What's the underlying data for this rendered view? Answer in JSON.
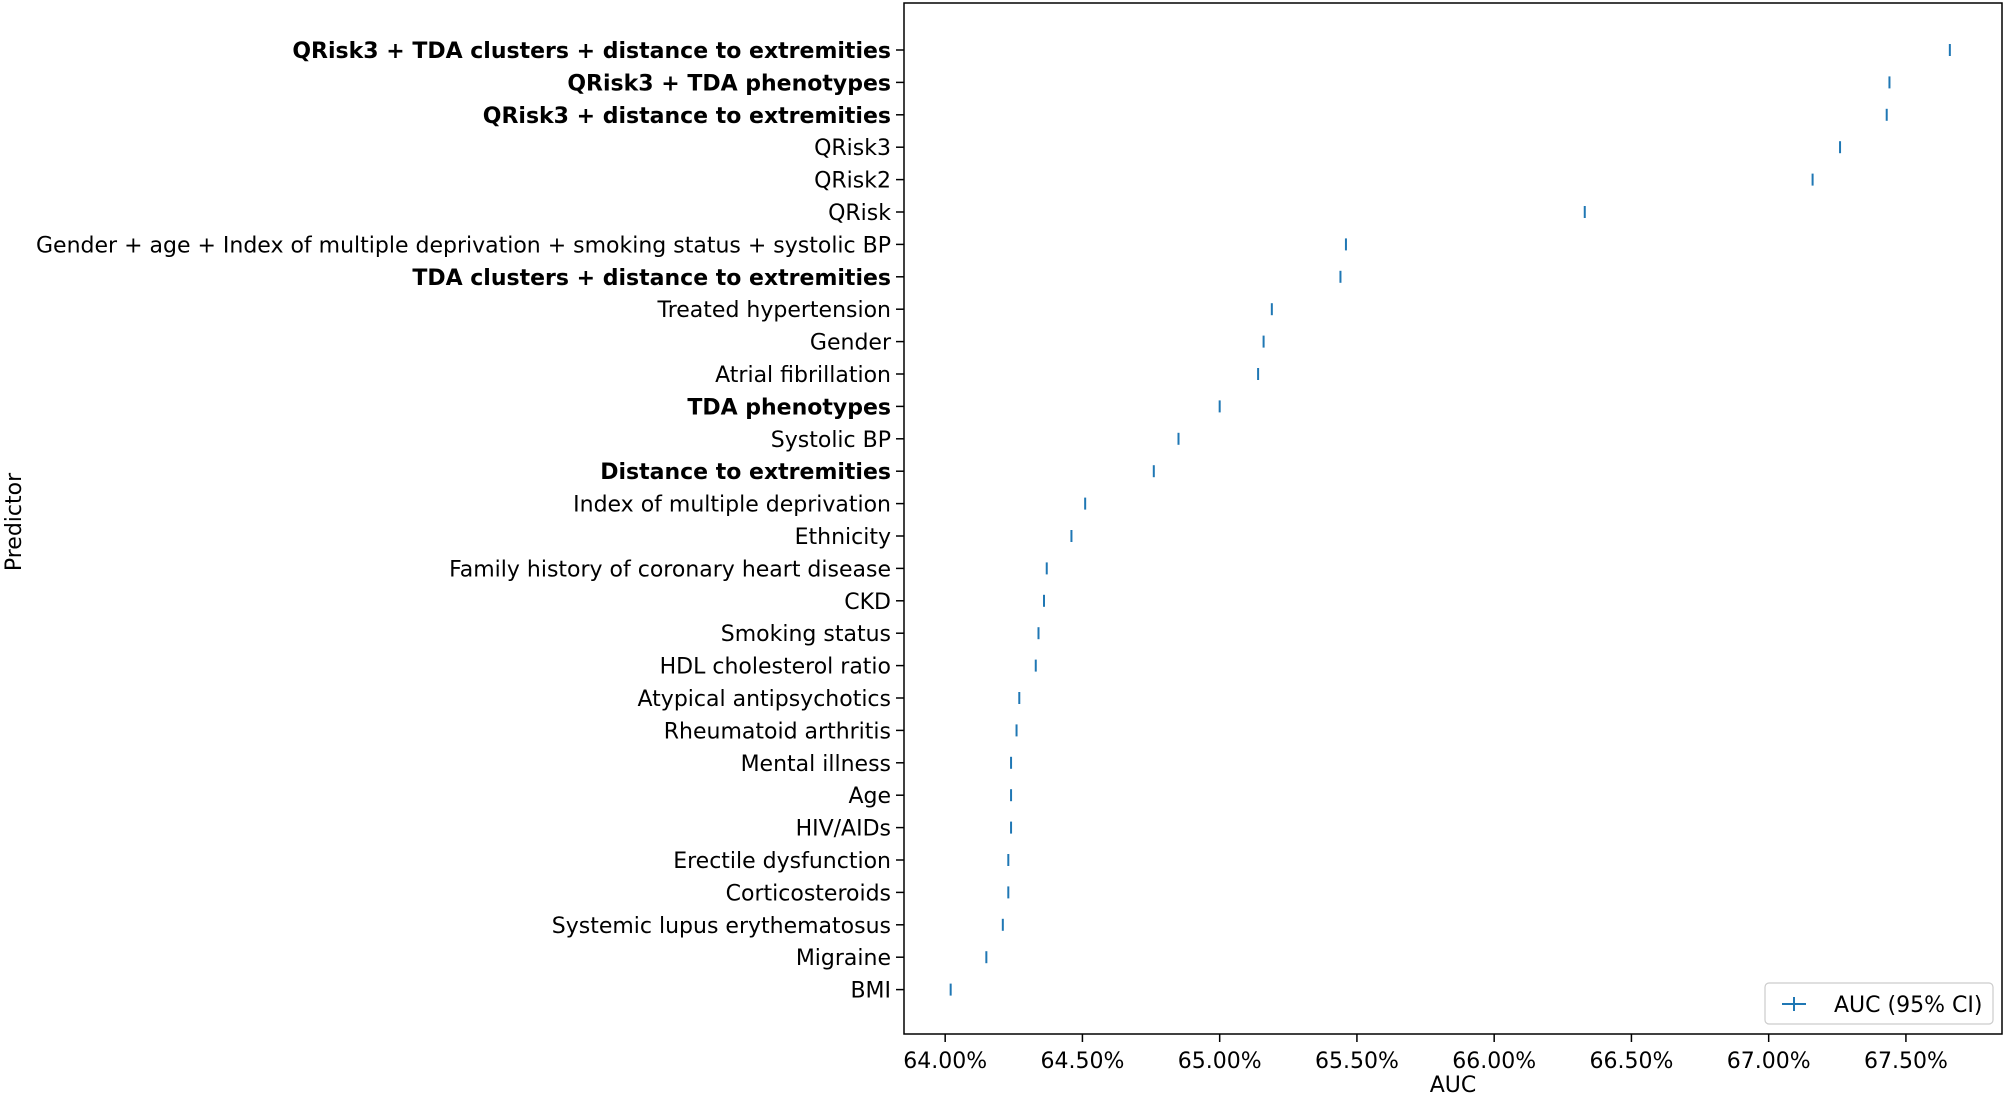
{
  "chart_data": {
    "type": "scatter",
    "xlabel": "AUC",
    "ylabel": "Predictor",
    "xlim": [
      63.85,
      67.85
    ],
    "x_ticks": [
      64.0,
      64.5,
      65.0,
      65.5,
      66.0,
      66.5,
      67.0,
      67.5
    ],
    "x_tick_labels": [
      "64.00%",
      "64.50%",
      "65.00%",
      "65.50%",
      "66.00%",
      "66.50%",
      "67.00%",
      "67.50%"
    ],
    "marker_color": "#1f77b4",
    "grid": false,
    "legend": {
      "label": "AUC (95% CI)",
      "placement": "lower-right"
    },
    "series": [
      {
        "name": "AUC (95% CI)",
        "points": [
          {
            "predictor": "QRisk3 + TDA clusters + distance to extremities",
            "auc": 67.66,
            "bold": true
          },
          {
            "predictor": "QRisk3 + TDA phenotypes",
            "auc": 67.44,
            "bold": true
          },
          {
            "predictor": "QRisk3 + distance to extremities",
            "auc": 67.43,
            "bold": true
          },
          {
            "predictor": "QRisk3",
            "auc": 67.26,
            "bold": false
          },
          {
            "predictor": "QRisk2",
            "auc": 67.16,
            "bold": false
          },
          {
            "predictor": "QRisk",
            "auc": 66.33,
            "bold": false
          },
          {
            "predictor": "Gender + age + Index of multiple deprivation + smoking status + systolic BP",
            "auc": 65.46,
            "bold": false
          },
          {
            "predictor": "TDA clusters + distance to extremities",
            "auc": 65.44,
            "bold": true
          },
          {
            "predictor": "Treated hypertension",
            "auc": 65.19,
            "bold": false
          },
          {
            "predictor": "Gender",
            "auc": 65.16,
            "bold": false
          },
          {
            "predictor": "Atrial fibrillation",
            "auc": 65.14,
            "bold": false
          },
          {
            "predictor": "TDA phenotypes",
            "auc": 65.0,
            "bold": true
          },
          {
            "predictor": "Systolic BP",
            "auc": 64.85,
            "bold": false
          },
          {
            "predictor": "Distance to extremities",
            "auc": 64.76,
            "bold": true
          },
          {
            "predictor": "Index of multiple deprivation",
            "auc": 64.51,
            "bold": false
          },
          {
            "predictor": "Ethnicity",
            "auc": 64.46,
            "bold": false
          },
          {
            "predictor": "Family history of coronary heart disease",
            "auc": 64.37,
            "bold": false
          },
          {
            "predictor": "CKD",
            "auc": 64.36,
            "bold": false
          },
          {
            "predictor": "Smoking status",
            "auc": 64.34,
            "bold": false
          },
          {
            "predictor": "HDL cholesterol ratio",
            "auc": 64.33,
            "bold": false
          },
          {
            "predictor": "Atypical antipsychotics",
            "auc": 64.27,
            "bold": false
          },
          {
            "predictor": "Rheumatoid arthritis",
            "auc": 64.26,
            "bold": false
          },
          {
            "predictor": "Mental illness",
            "auc": 64.24,
            "bold": false
          },
          {
            "predictor": "Age",
            "auc": 64.24,
            "bold": false
          },
          {
            "predictor": "HIV/AIDs",
            "auc": 64.24,
            "bold": false
          },
          {
            "predictor": "Erectile dysfunction",
            "auc": 64.23,
            "bold": false
          },
          {
            "predictor": "Corticosteroids",
            "auc": 64.23,
            "bold": false
          },
          {
            "predictor": "Systemic lupus erythematosus",
            "auc": 64.21,
            "bold": false
          },
          {
            "predictor": "Migraine",
            "auc": 64.15,
            "bold": false
          },
          {
            "predictor": "BMI",
            "auc": 64.02,
            "bold": false
          }
        ]
      }
    ]
  }
}
